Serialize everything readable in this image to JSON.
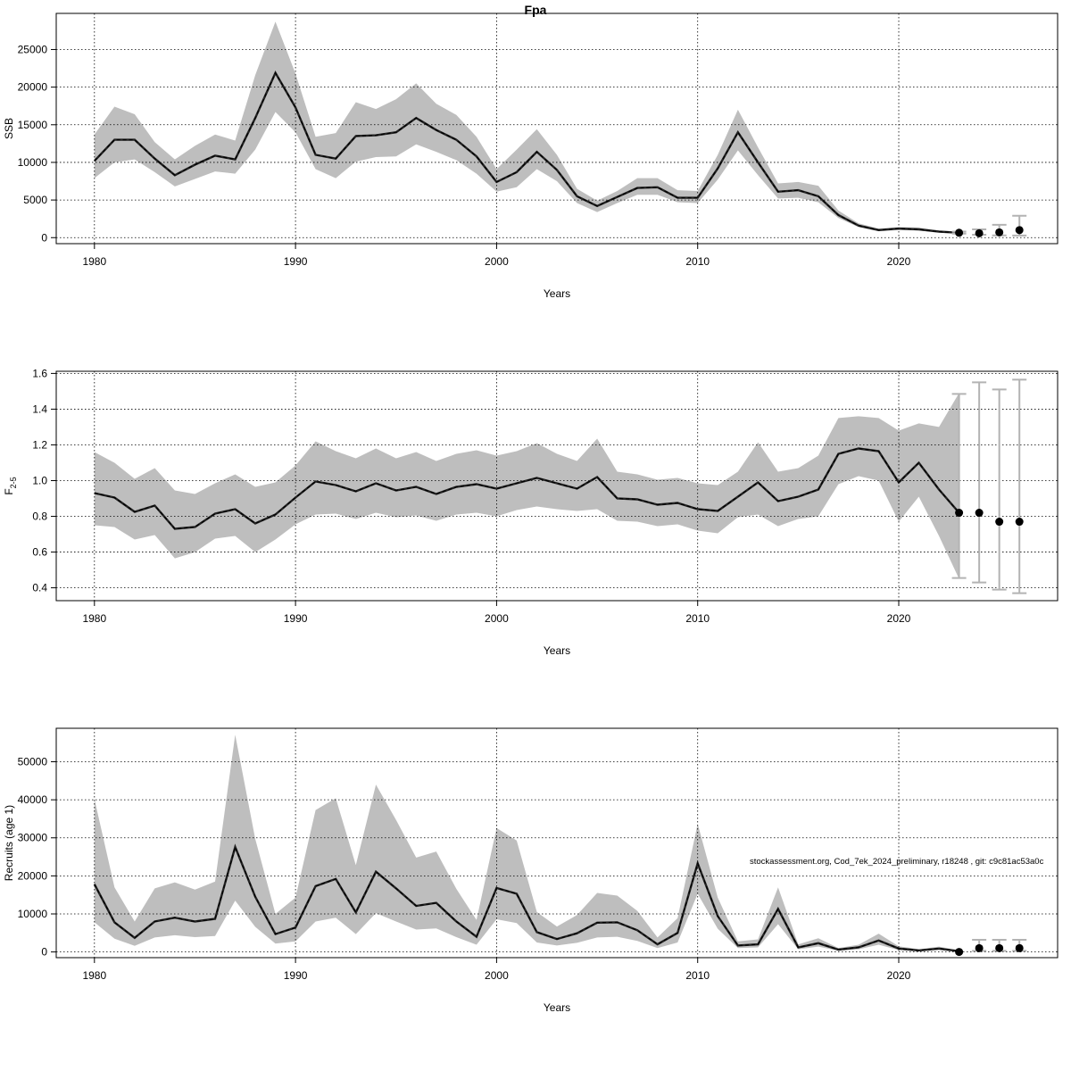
{
  "title": "Fpa",
  "watermark": "stockassessment.org, Cod_7ek_2024_preliminary, r18248 , git: c9c81ac53a0c",
  "colors": {
    "band": "#bebebe",
    "line": "#222222",
    "forecast_point": "#000000",
    "forecast_bar": "#b3b3b3",
    "grid": "#000000"
  },
  "chart_data": [
    {
      "type": "line",
      "name": "ssb",
      "xlabel": "Years",
      "ylabel": "SSB",
      "xlim": [
        1978.1,
        2027.9
      ],
      "ylim": [
        -800,
        29800
      ],
      "xticks": [
        1980,
        1990,
        2000,
        2010,
        2020
      ],
      "yticks": [
        0,
        5000,
        10000,
        15000,
        20000,
        25000
      ],
      "grid": true,
      "years": [
        1980,
        1981,
        1982,
        1983,
        1984,
        1985,
        1986,
        1987,
        1988,
        1989,
        1990,
        1991,
        1992,
        1993,
        1994,
        1995,
        1996,
        1997,
        1998,
        1999,
        2000,
        2001,
        2002,
        2003,
        2004,
        2005,
        2006,
        2007,
        2008,
        2009,
        2010,
        2011,
        2012,
        2013,
        2014,
        2015,
        2016,
        2017,
        2018,
        2019,
        2020,
        2021,
        2022,
        2023
      ],
      "estimate": [
        10200,
        13000,
        13000,
        10500,
        8300,
        9700,
        10900,
        10400,
        15900,
        21900,
        17300,
        11000,
        10500,
        13500,
        13600,
        14000,
        15900,
        14300,
        13000,
        10800,
        7400,
        8700,
        11400,
        9000,
        5500,
        4200,
        5400,
        6600,
        6700,
        5300,
        5300,
        9200,
        14000,
        10000,
        6100,
        6300,
        5500,
        3000,
        1600,
        1000,
        1200,
        1100,
        800,
        650
      ],
      "lower": [
        7900,
        10000,
        10400,
        8700,
        6800,
        7800,
        8800,
        8500,
        11700,
        16700,
        14000,
        9100,
        7900,
        10100,
        10700,
        10800,
        12400,
        11400,
        10300,
        8500,
        6100,
        6700,
        9100,
        7500,
        4600,
        3400,
        4600,
        5700,
        5700,
        4700,
        4600,
        7700,
        11600,
        8300,
        5200,
        5300,
        4700,
        2600,
        1400,
        850,
        1000,
        950,
        700,
        550
      ],
      "upper": [
        13700,
        17400,
        16400,
        12700,
        10400,
        12200,
        13700,
        12900,
        21600,
        28700,
        21800,
        13400,
        13900,
        18000,
        17100,
        18400,
        20500,
        17800,
        16300,
        13400,
        9100,
        11700,
        14400,
        11000,
        6500,
        4900,
        6200,
        7900,
        7900,
        6300,
        6200,
        11000,
        17000,
        12000,
        7200,
        7400,
        6900,
        3600,
        1900,
        1200,
        1400,
        1350,
        900,
        800
      ],
      "forecast": [
        {
          "year": 2023,
          "value": 650,
          "low": 530,
          "high": 800
        },
        {
          "year": 2024,
          "value": 580,
          "low": 380,
          "high": 1100
        },
        {
          "year": 2025,
          "value": 700,
          "low": 300,
          "high": 1700
        },
        {
          "year": 2026,
          "value": 1000,
          "low": 280,
          "high": 2900
        }
      ]
    },
    {
      "type": "line",
      "name": "f",
      "xlabel": "Years",
      "ylabel": "F",
      "ylabel_sub": "2-5",
      "xlim": [
        1978.1,
        2027.9
      ],
      "ylim": [
        0.328,
        1.612
      ],
      "xticks": [
        1980,
        1990,
        2000,
        2010,
        2020
      ],
      "yticks": [
        0.4,
        0.6,
        0.8,
        1.0,
        1.2,
        1.4,
        1.6
      ],
      "ytick_labels": [
        "0.4",
        "0.6",
        "0.8",
        "1.0",
        "1.2",
        "1.4",
        "1.6"
      ],
      "grid": true,
      "years": [
        1980,
        1981,
        1982,
        1983,
        1984,
        1985,
        1986,
        1987,
        1988,
        1989,
        1990,
        1991,
        1992,
        1993,
        1994,
        1995,
        1996,
        1997,
        1998,
        1999,
        2000,
        2001,
        2002,
        2003,
        2004,
        2005,
        2006,
        2007,
        2008,
        2009,
        2010,
        2011,
        2012,
        2013,
        2014,
        2015,
        2016,
        2017,
        2018,
        2019,
        2020,
        2021,
        2022,
        2023
      ],
      "estimate": [
        0.93,
        0.905,
        0.825,
        0.86,
        0.73,
        0.74,
        0.815,
        0.84,
        0.76,
        0.81,
        0.905,
        0.995,
        0.975,
        0.94,
        0.985,
        0.945,
        0.965,
        0.925,
        0.965,
        0.98,
        0.955,
        0.985,
        1.015,
        0.985,
        0.955,
        1.02,
        0.9,
        0.895,
        0.865,
        0.875,
        0.84,
        0.83,
        0.91,
        0.99,
        0.885,
        0.91,
        0.95,
        1.15,
        1.18,
        1.165,
        0.99,
        1.1,
        0.95,
        0.82
      ],
      "lower": [
        0.75,
        0.74,
        0.67,
        0.695,
        0.565,
        0.6,
        0.675,
        0.69,
        0.6,
        0.67,
        0.755,
        0.81,
        0.815,
        0.785,
        0.82,
        0.795,
        0.805,
        0.775,
        0.81,
        0.82,
        0.8,
        0.835,
        0.855,
        0.84,
        0.83,
        0.84,
        0.775,
        0.77,
        0.745,
        0.755,
        0.72,
        0.705,
        0.795,
        0.81,
        0.745,
        0.785,
        0.8,
        0.98,
        1.025,
        1.0,
        0.77,
        0.91,
        0.69,
        0.45
      ],
      "upper": [
        1.16,
        1.1,
        1.01,
        1.07,
        0.945,
        0.925,
        0.985,
        1.035,
        0.965,
        0.99,
        1.085,
        1.22,
        1.165,
        1.125,
        1.18,
        1.125,
        1.16,
        1.11,
        1.15,
        1.17,
        1.14,
        1.165,
        1.21,
        1.15,
        1.11,
        1.235,
        1.05,
        1.035,
        1.005,
        1.015,
        0.985,
        0.975,
        1.05,
        1.215,
        1.05,
        1.07,
        1.14,
        1.35,
        1.36,
        1.35,
        1.28,
        1.32,
        1.3,
        1.49
      ],
      "forecast": [
        {
          "year": 2023,
          "value": 0.82,
          "low": 0.455,
          "high": 1.485
        },
        {
          "year": 2024,
          "value": 0.82,
          "low": 0.43,
          "high": 1.55
        },
        {
          "year": 2025,
          "value": 0.77,
          "low": 0.39,
          "high": 1.51
        },
        {
          "year": 2026,
          "value": 0.77,
          "low": 0.37,
          "high": 1.565
        }
      ]
    },
    {
      "type": "line",
      "name": "recruits",
      "xlabel": "Years",
      "ylabel": "Recruits (age 1)",
      "xlim": [
        1978.1,
        2027.9
      ],
      "ylim": [
        -1500,
        58800
      ],
      "xticks": [
        1980,
        1990,
        2000,
        2010,
        2020
      ],
      "yticks": [
        0,
        10000,
        20000,
        30000,
        40000,
        50000
      ],
      "grid": true,
      "years": [
        1980,
        1981,
        1982,
        1983,
        1984,
        1985,
        1986,
        1987,
        1988,
        1989,
        1990,
        1991,
        1992,
        1993,
        1994,
        1995,
        1996,
        1997,
        1998,
        1999,
        2000,
        2001,
        2002,
        2003,
        2004,
        2005,
        2006,
        2007,
        2008,
        2009,
        2010,
        2011,
        2012,
        2013,
        2014,
        2015,
        2016,
        2017,
        2018,
        2019,
        2020,
        2021,
        2022,
        2023
      ],
      "estimate": [
        17800,
        7800,
        3700,
        8000,
        9000,
        8000,
        8700,
        27600,
        14500,
        4700,
        6400,
        17300,
        19200,
        10400,
        21100,
        16700,
        12100,
        12900,
        8000,
        4000,
        16800,
        15300,
        5200,
        3400,
        4900,
        7700,
        7800,
        5700,
        2000,
        5000,
        23300,
        9400,
        1700,
        2000,
        11300,
        1200,
        2300,
        600,
        1200,
        3000,
        900,
        400,
        900,
        200
      ],
      "lower": [
        7800,
        3500,
        1600,
        3800,
        4400,
        3900,
        4200,
        13500,
        6600,
        2200,
        2800,
        8000,
        9000,
        4700,
        10200,
        8000,
        5900,
        6200,
        3900,
        1900,
        8600,
        7600,
        2500,
        1700,
        2400,
        3800,
        4000,
        2900,
        1000,
        2500,
        15300,
        6100,
        1000,
        1200,
        7300,
        700,
        1400,
        300,
        700,
        1900,
        500,
        200,
        500,
        100
      ],
      "upper": [
        40200,
        17000,
        8000,
        16700,
        18300,
        16400,
        18500,
        57100,
        29700,
        10000,
        14300,
        37300,
        40400,
        22800,
        44000,
        34700,
        24800,
        26400,
        16600,
        8400,
        32600,
        29300,
        10500,
        6700,
        9700,
        15500,
        14800,
        10800,
        3800,
        8900,
        33700,
        14300,
        2800,
        3300,
        17000,
        2000,
        3600,
        1000,
        1900,
        4800,
        1500,
        700,
        1400,
        400
      ],
      "forecast": [
        {
          "year": 2023,
          "value": 0,
          "low": 0,
          "high": 0
        },
        {
          "year": 2024,
          "value": 1000,
          "low": 300,
          "high": 3200
        },
        {
          "year": 2025,
          "value": 1000,
          "low": 300,
          "high": 3200
        },
        {
          "year": 2026,
          "value": 1000,
          "low": 300,
          "high": 3200
        }
      ]
    }
  ]
}
